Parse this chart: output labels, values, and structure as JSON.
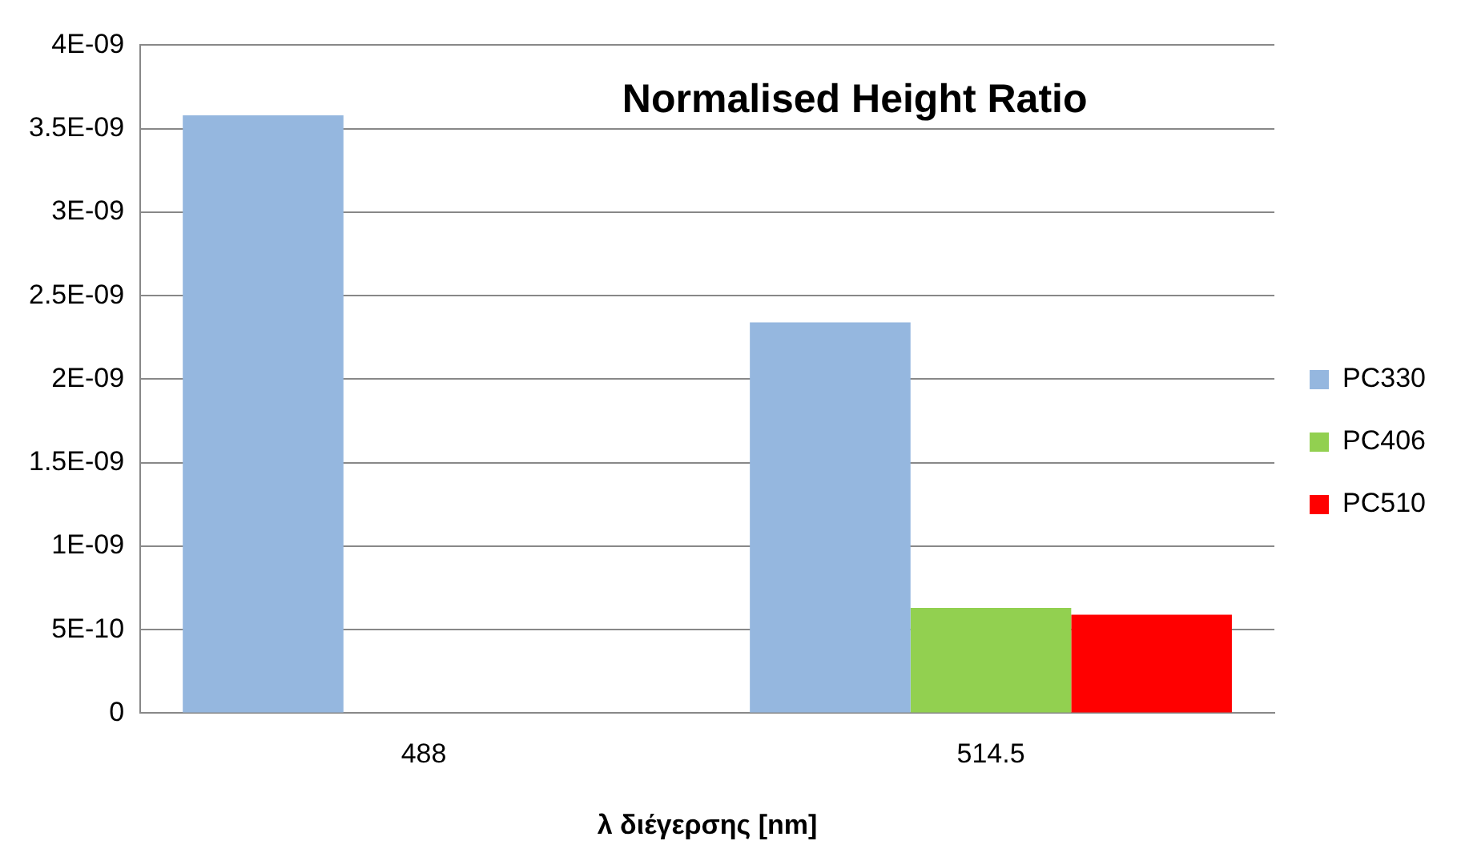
{
  "chart_data": {
    "type": "bar",
    "title": "Normalised Height Ratio",
    "xlabel": "λ διέγερσης [nm]",
    "categories": [
      "488",
      "514.5"
    ],
    "series": [
      {
        "name": "PC330",
        "color": "#95b7df",
        "values": [
          3.58e-09,
          2.34e-09
        ]
      },
      {
        "name": "PC406",
        "color": "#92d050",
        "values": [
          null,
          6.3e-10
        ]
      },
      {
        "name": "PC510",
        "color": "#ff0000",
        "values": [
          null,
          5.9e-10
        ]
      }
    ],
    "ylim": [
      0,
      4e-09
    ],
    "yticks": [
      {
        "value": 0,
        "label": "0"
      },
      {
        "value": 5e-10,
        "label": "5E-10"
      },
      {
        "value": 1e-09,
        "label": "1E-09"
      },
      {
        "value": 1.5e-09,
        "label": "1.5E-09"
      },
      {
        "value": 2e-09,
        "label": "2E-09"
      },
      {
        "value": 2.5e-09,
        "label": "2.5E-09"
      },
      {
        "value": 3e-09,
        "label": "3E-09"
      },
      {
        "value": 3.5e-09,
        "label": "3.5E-09"
      },
      {
        "value": 4e-09,
        "label": "4E-09"
      }
    ],
    "grid": "y",
    "legend": "right"
  }
}
